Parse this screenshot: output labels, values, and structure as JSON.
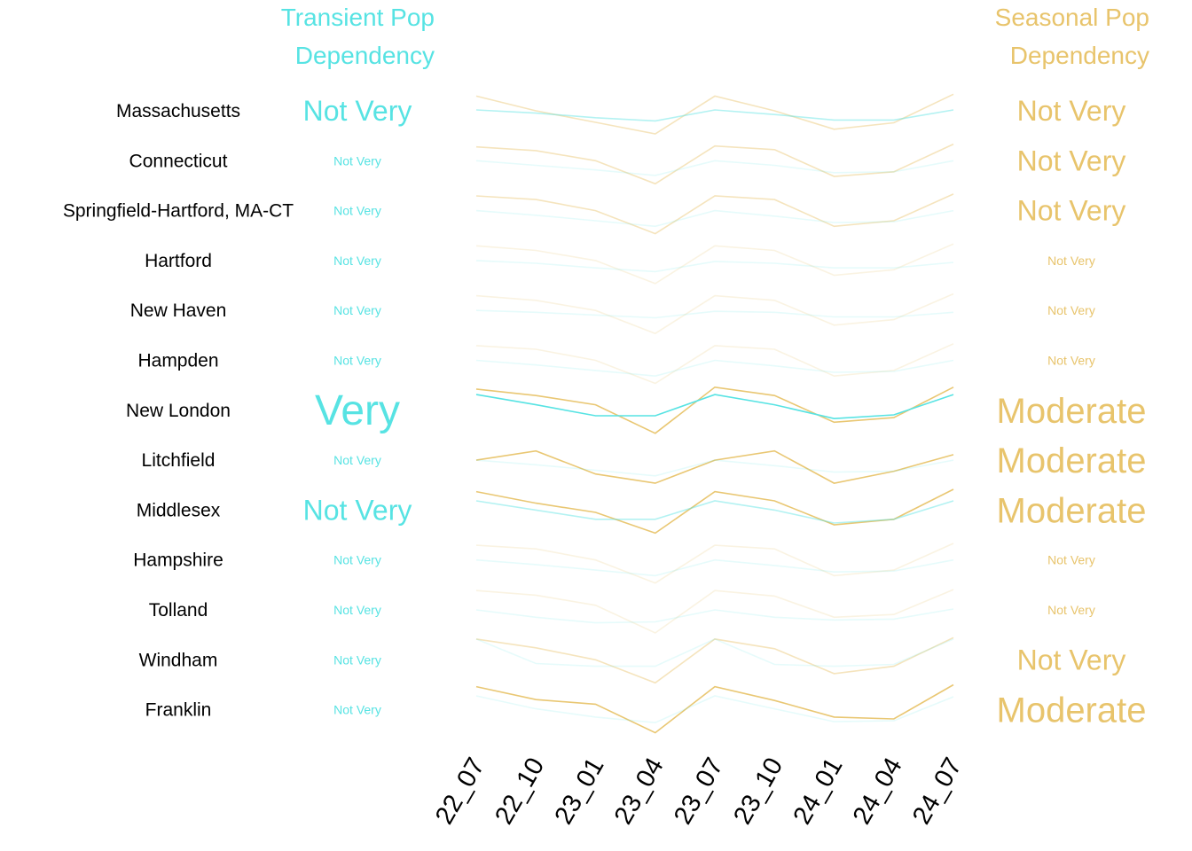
{
  "chart_data": {
    "type": "line",
    "left_header": [
      "Transient Pop",
      "Dependency"
    ],
    "right_header": [
      "Seasonal Pop",
      "Dependency"
    ],
    "x": [
      "22_07",
      "22_10",
      "23_01",
      "23_04",
      "23_07",
      "23_10",
      "24_01",
      "24_04",
      "24_07"
    ],
    "colors": {
      "transient": "#57e3e3",
      "seasonal": "#e8c46c"
    },
    "rows": [
      {
        "name": "Massachusetts",
        "transient": "Not Very",
        "seasonal": "Not Very",
        "transient_values": [
          0.52,
          0.45,
          0.35,
          0.28,
          0.52,
          0.42,
          0.3,
          0.3,
          0.52
        ],
        "seasonal_values": [
          0.82,
          0.5,
          0.25,
          0.0,
          0.82,
          0.5,
          0.1,
          0.24,
          0.86
        ]
      },
      {
        "name": "Connecticut",
        "transient": "Not Very",
        "seasonal": "Not Very",
        "transient_values": [
          0.5,
          0.4,
          0.3,
          0.18,
          0.5,
          0.4,
          0.24,
          0.26,
          0.5
        ],
        "seasonal_values": [
          0.8,
          0.72,
          0.5,
          0.0,
          0.82,
          0.74,
          0.16,
          0.26,
          0.86
        ]
      },
      {
        "name": "Springfield-Hartford, MA-CT",
        "transient": "Not Very",
        "seasonal": "Not Very",
        "transient_values": [
          0.5,
          0.4,
          0.28,
          0.16,
          0.5,
          0.38,
          0.24,
          0.26,
          0.5
        ],
        "seasonal_values": [
          0.82,
          0.74,
          0.5,
          0.0,
          0.82,
          0.74,
          0.16,
          0.28,
          0.86
        ]
      },
      {
        "name": "Hartford",
        "transient": "Not Very",
        "seasonal": "Not Very",
        "transient_values": [
          0.5,
          0.44,
          0.34,
          0.26,
          0.48,
          0.44,
          0.34,
          0.34,
          0.46
        ],
        "seasonal_values": [
          0.82,
          0.72,
          0.5,
          0.0,
          0.82,
          0.72,
          0.18,
          0.3,
          0.86
        ]
      },
      {
        "name": "New Haven",
        "transient": "Not Very",
        "seasonal": "Not Very",
        "transient_values": [
          0.5,
          0.46,
          0.4,
          0.34,
          0.48,
          0.46,
          0.36,
          0.36,
          0.46
        ],
        "seasonal_values": [
          0.82,
          0.72,
          0.5,
          0.0,
          0.82,
          0.72,
          0.18,
          0.3,
          0.86
        ]
      },
      {
        "name": "Hampden",
        "transient": "Not Very",
        "seasonal": "Not Very",
        "transient_values": [
          0.5,
          0.4,
          0.28,
          0.16,
          0.5,
          0.38,
          0.24,
          0.26,
          0.5
        ],
        "seasonal_values": [
          0.82,
          0.74,
          0.5,
          0.0,
          0.82,
          0.74,
          0.16,
          0.28,
          0.86
        ]
      },
      {
        "name": "New London",
        "transient": "Very",
        "seasonal": "Moderate",
        "transient_values": [
          0.84,
          0.62,
          0.38,
          0.38,
          0.84,
          0.62,
          0.32,
          0.4,
          0.84
        ],
        "seasonal_values": [
          0.96,
          0.82,
          0.62,
          0.0,
          1.0,
          0.82,
          0.24,
          0.34,
          1.0
        ]
      },
      {
        "name": "Litchfield",
        "transient": "Not Very",
        "seasonal": "Moderate",
        "transient_values": [
          0.5,
          0.4,
          0.28,
          0.16,
          0.5,
          0.38,
          0.24,
          0.26,
          0.5
        ],
        "seasonal_values": [
          0.5,
          0.7,
          0.2,
          0.0,
          0.5,
          0.7,
          0.0,
          0.26,
          0.62
        ]
      },
      {
        "name": "Middlesex",
        "transient": "Not Very",
        "seasonal": "Moderate",
        "transient_values": [
          0.7,
          0.5,
          0.3,
          0.3,
          0.7,
          0.5,
          0.22,
          0.3,
          0.7
        ],
        "seasonal_values": [
          0.9,
          0.65,
          0.45,
          0.0,
          0.9,
          0.7,
          0.18,
          0.3,
          0.95
        ]
      },
      {
        "name": "Hampshire",
        "transient": "Not Very",
        "seasonal": "Not Very",
        "transient_values": [
          0.5,
          0.4,
          0.28,
          0.16,
          0.5,
          0.38,
          0.24,
          0.26,
          0.5
        ],
        "seasonal_values": [
          0.82,
          0.74,
          0.5,
          0.0,
          0.82,
          0.74,
          0.16,
          0.28,
          0.86
        ]
      },
      {
        "name": "Tolland",
        "transient": "Not Very",
        "seasonal": "Not Very",
        "transient_values": [
          0.5,
          0.34,
          0.22,
          0.24,
          0.5,
          0.34,
          0.28,
          0.3,
          0.52
        ],
        "seasonal_values": [
          0.92,
          0.82,
          0.6,
          0.0,
          0.92,
          0.8,
          0.34,
          0.4,
          0.94
        ]
      },
      {
        "name": "Windham",
        "transient": "Not Very",
        "seasonal": "Not Very",
        "transient_values": [
          0.95,
          0.42,
          0.36,
          0.36,
          0.95,
          0.4,
          0.36,
          0.4,
          0.95
        ],
        "seasonal_values": [
          0.95,
          0.76,
          0.5,
          0.0,
          0.95,
          0.74,
          0.2,
          0.36,
          0.98
        ]
      },
      {
        "name": "Franklin",
        "transient": "Not Very",
        "seasonal": "Moderate",
        "transient_values": [
          0.8,
          0.52,
          0.34,
          0.22,
          0.8,
          0.52,
          0.24,
          0.26,
          0.78
        ],
        "seasonal_values": [
          1.0,
          0.72,
          0.62,
          0.0,
          1.0,
          0.7,
          0.34,
          0.3,
          1.04
        ]
      }
    ]
  }
}
